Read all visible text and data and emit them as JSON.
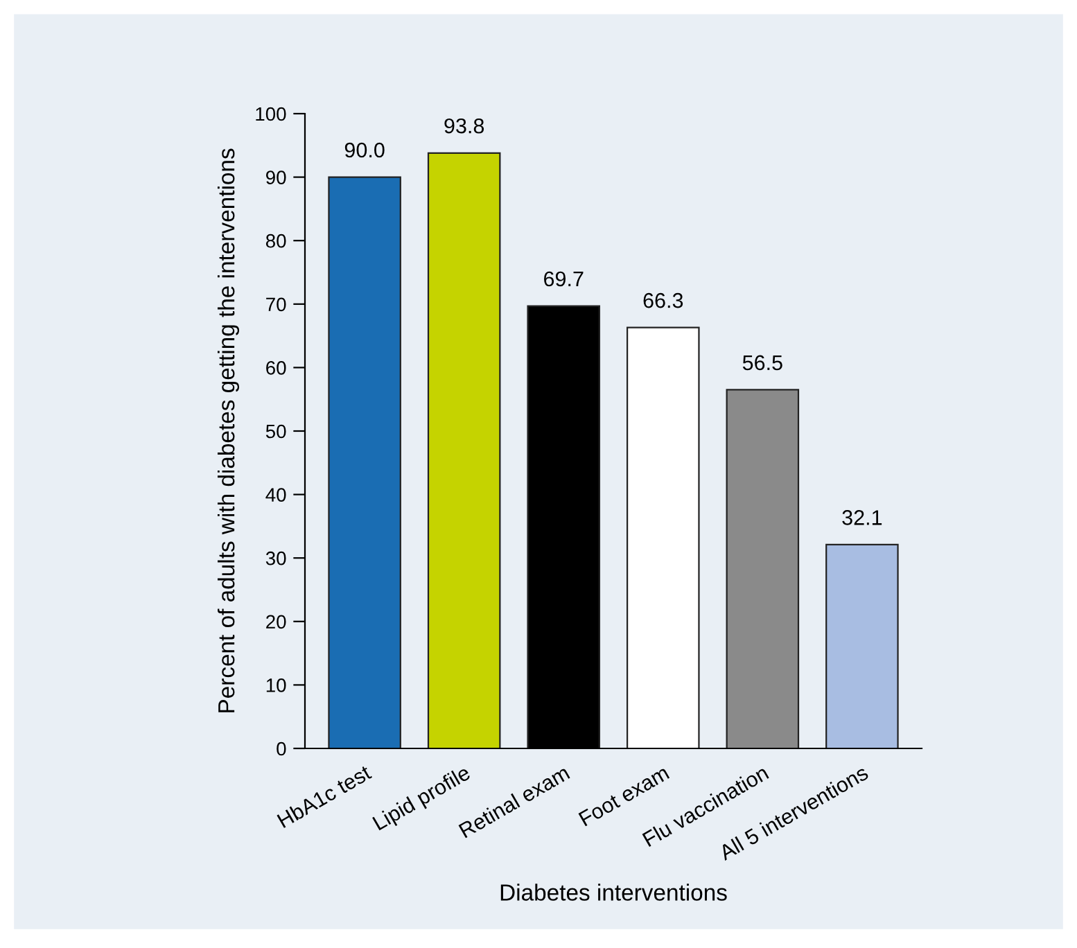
{
  "chart_data": {
    "type": "bar",
    "xlabel": "Diabetes interventions",
    "ylabel": "Percent of adults with diabetes getting the interventions",
    "categories": [
      "HbA1c test",
      "Lipid profile",
      "Retinal exam",
      "Foot exam",
      "Flu vaccination",
      "All 5 interventions"
    ],
    "values": [
      90.0,
      93.8,
      69.7,
      66.3,
      56.5,
      32.1
    ],
    "colors": [
      "#1a6db3",
      "#c5d300",
      "#000000",
      "#ffffff",
      "#8a8a8a",
      "#a8bde2"
    ],
    "value_labels": [
      "90.0",
      "93.8",
      "69.7",
      "66.3",
      "56.5",
      "32.1"
    ],
    "ylim": [
      0,
      100
    ],
    "yticks": [
      0,
      10,
      20,
      30,
      40,
      50,
      60,
      70,
      80,
      90,
      100
    ],
    "grid": false,
    "legend": false
  }
}
